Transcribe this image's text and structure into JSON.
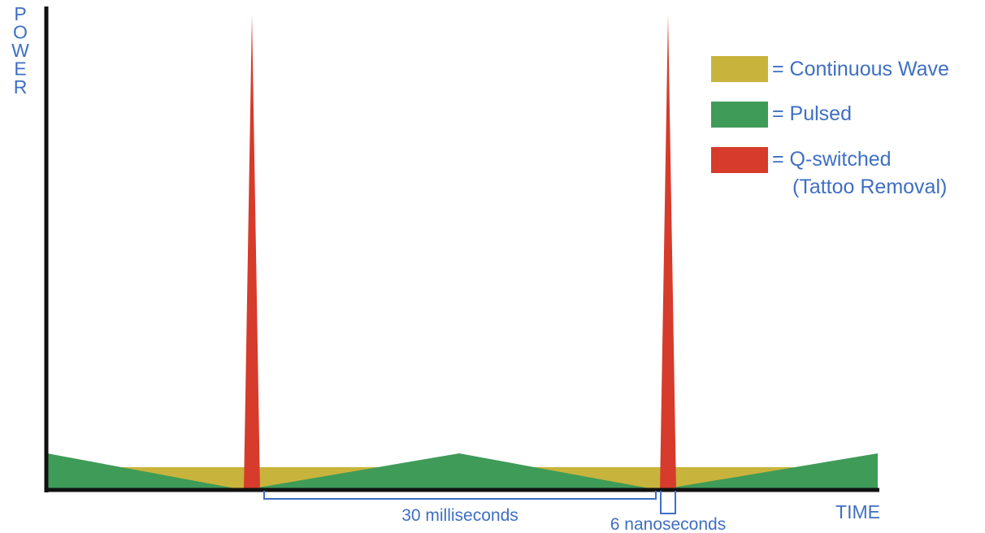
{
  "axes": {
    "y_label": "POWER",
    "x_label": "TIME"
  },
  "legend": {
    "items": [
      {
        "key": "continuous",
        "text": "= Continuous Wave",
        "color": "#c8b43c"
      },
      {
        "key": "pulsed",
        "text": "= Pulsed",
        "color": "#3f9b58"
      },
      {
        "key": "qswitched",
        "text": "= Q-switched",
        "text2": "(Tattoo Removal)",
        "color": "#d63b2b"
      }
    ]
  },
  "annotations": {
    "pulse_interval": "30 milliseconds",
    "pulse_width": "6 nanoseconds"
  },
  "colors": {
    "text": "#3f6fc4",
    "axis": "#111111"
  }
}
